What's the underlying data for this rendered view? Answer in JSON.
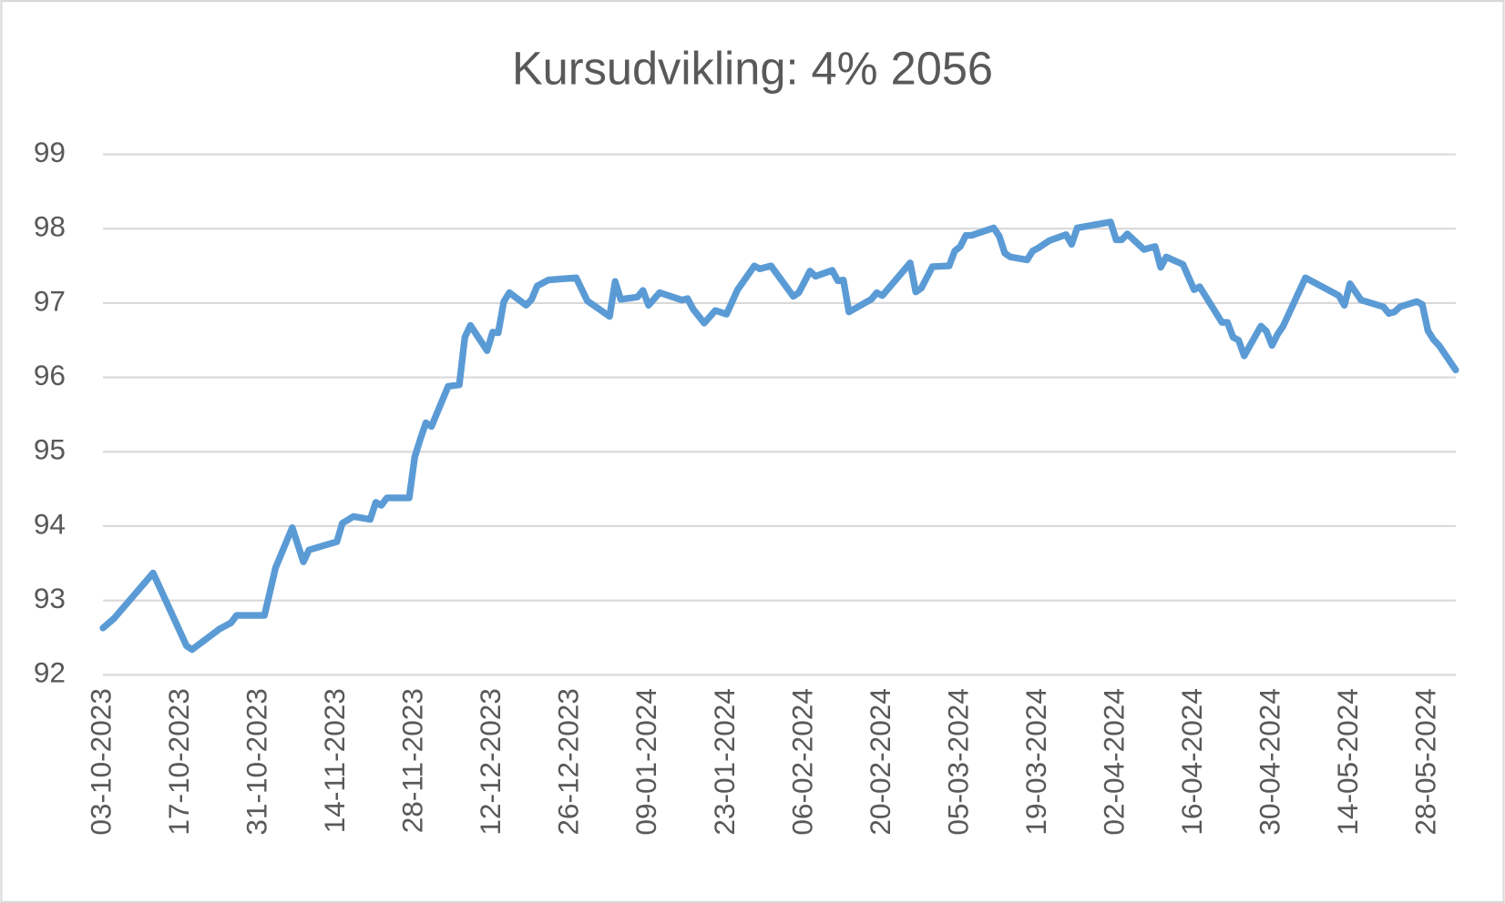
{
  "chart_data": {
    "type": "line",
    "title": "Kursudvikling: 4% 2056",
    "x": [
      "03-10-2023",
      "05-10-2023",
      "12-10-2023",
      "18-10-2023",
      "19-10-2023",
      "24-10-2023",
      "26-10-2023",
      "27-10-2023",
      "01-11-2023",
      "03-11-2023",
      "06-11-2023",
      "08-11-2023",
      "09-11-2023",
      "14-11-2023",
      "15-11-2023",
      "17-11-2023",
      "20-11-2023",
      "21-11-2023",
      "22-11-2023",
      "23-11-2023",
      "27-11-2023",
      "28-11-2023",
      "29-11-2023",
      "30-11-2023",
      "01-12-2023",
      "04-12-2023",
      "06-12-2023",
      "07-12-2023",
      "08-12-2023",
      "11-12-2023",
      "12-12-2023",
      "13-12-2023",
      "14-12-2023",
      "15-12-2023",
      "18-12-2023",
      "19-12-2023",
      "20-12-2023",
      "22-12-2023",
      "27-12-2023",
      "29-12-2023",
      "02-01-2024",
      "03-01-2024",
      "04-01-2024",
      "07-01-2024",
      "08-01-2024",
      "09-01-2024",
      "11-01-2024",
      "15-01-2024",
      "16-01-2024",
      "17-01-2024",
      "19-01-2024",
      "21-01-2024",
      "23-01-2024",
      "25-01-2024",
      "28-01-2024",
      "29-01-2024",
      "31-01-2024",
      "04-02-2024",
      "05-02-2024",
      "07-02-2024",
      "08-02-2024",
      "11-02-2024",
      "12-02-2024",
      "13-02-2024",
      "14-02-2024",
      "18-02-2024",
      "19-02-2024",
      "20-02-2024",
      "25-02-2024",
      "26-02-2024",
      "27-02-2024",
      "29-02-2024",
      "03-03-2024",
      "04-03-2024",
      "05-03-2024",
      "06-03-2024",
      "07-03-2024",
      "11-03-2024",
      "12-03-2024",
      "13-03-2024",
      "14-03-2024",
      "17-03-2024",
      "18-03-2024",
      "19-03-2024",
      "21-03-2024",
      "24-03-2024",
      "25-03-2024",
      "26-03-2024",
      "01-04-2024",
      "02-04-2024",
      "03-04-2024",
      "04-04-2024",
      "07-04-2024",
      "09-04-2024",
      "10-04-2024",
      "11-04-2024",
      "14-04-2024",
      "16-04-2024",
      "17-04-2024",
      "21-04-2024",
      "22-04-2024",
      "23-04-2024",
      "24-04-2024",
      "25-04-2024",
      "28-04-2024",
      "29-04-2024",
      "30-04-2024",
      "01-05-2024",
      "02-05-2024",
      "06-05-2024",
      "12-05-2024",
      "13-05-2024",
      "14-05-2024",
      "16-05-2024",
      "20-05-2024",
      "21-05-2024",
      "22-05-2024",
      "23-05-2024",
      "26-05-2024",
      "27-05-2024",
      "28-05-2024",
      "29-05-2024",
      "30-05-2024",
      "02-06-2024"
    ],
    "values": [
      92.63,
      92.76,
      93.37,
      92.39,
      92.34,
      92.62,
      92.7,
      92.8,
      92.8,
      93.44,
      93.98,
      93.52,
      93.68,
      93.79,
      94.04,
      94.13,
      94.09,
      94.32,
      94.28,
      94.38,
      94.38,
      94.93,
      95.17,
      95.39,
      95.34,
      95.88,
      95.9,
      96.54,
      96.7,
      96.36,
      96.61,
      96.6,
      97.02,
      97.14,
      96.97,
      97.05,
      97.23,
      97.31,
      97.34,
      97.03,
      96.82,
      97.29,
      97.05,
      97.08,
      97.17,
      96.97,
      97.14,
      97.04,
      97.06,
      96.92,
      96.73,
      96.9,
      96.85,
      97.18,
      97.5,
      97.46,
      97.5,
      97.09,
      97.14,
      97.43,
      97.36,
      97.44,
      97.3,
      97.31,
      96.88,
      97.05,
      97.14,
      97.1,
      97.54,
      97.15,
      97.2,
      97.49,
      97.5,
      97.7,
      97.76,
      97.91,
      97.91,
      98.01,
      97.9,
      97.67,
      97.62,
      97.58,
      97.7,
      97.74,
      97.84,
      97.92,
      97.79,
      98.01,
      98.09,
      97.85,
      97.85,
      97.93,
      97.72,
      97.76,
      97.48,
      97.62,
      97.52,
      97.18,
      97.22,
      96.74,
      96.74,
      96.54,
      96.5,
      96.29,
      96.69,
      96.62,
      96.43,
      96.58,
      96.69,
      97.34,
      97.1,
      96.97,
      97.26,
      97.04,
      96.95,
      96.86,
      96.88,
      96.95,
      97.02,
      96.98,
      96.63,
      96.51,
      96.43,
      96.1
    ],
    "color": "#5b9bd5",
    "xlim": [
      "03-10-2023",
      "02-06-2024"
    ],
    "xticks": [
      "03-10-2023",
      "17-10-2023",
      "31-10-2023",
      "14-11-2023",
      "28-11-2023",
      "12-12-2023",
      "26-12-2023",
      "09-01-2024",
      "23-01-2024",
      "06-02-2024",
      "20-02-2024",
      "05-03-2024",
      "19-03-2024",
      "02-04-2024",
      "16-04-2024",
      "30-04-2024",
      "14-05-2024",
      "28-05-2024"
    ],
    "ylim": [
      92,
      99
    ],
    "yticks": [
      92,
      93,
      94,
      95,
      96,
      97,
      98,
      99
    ],
    "grid": true
  }
}
